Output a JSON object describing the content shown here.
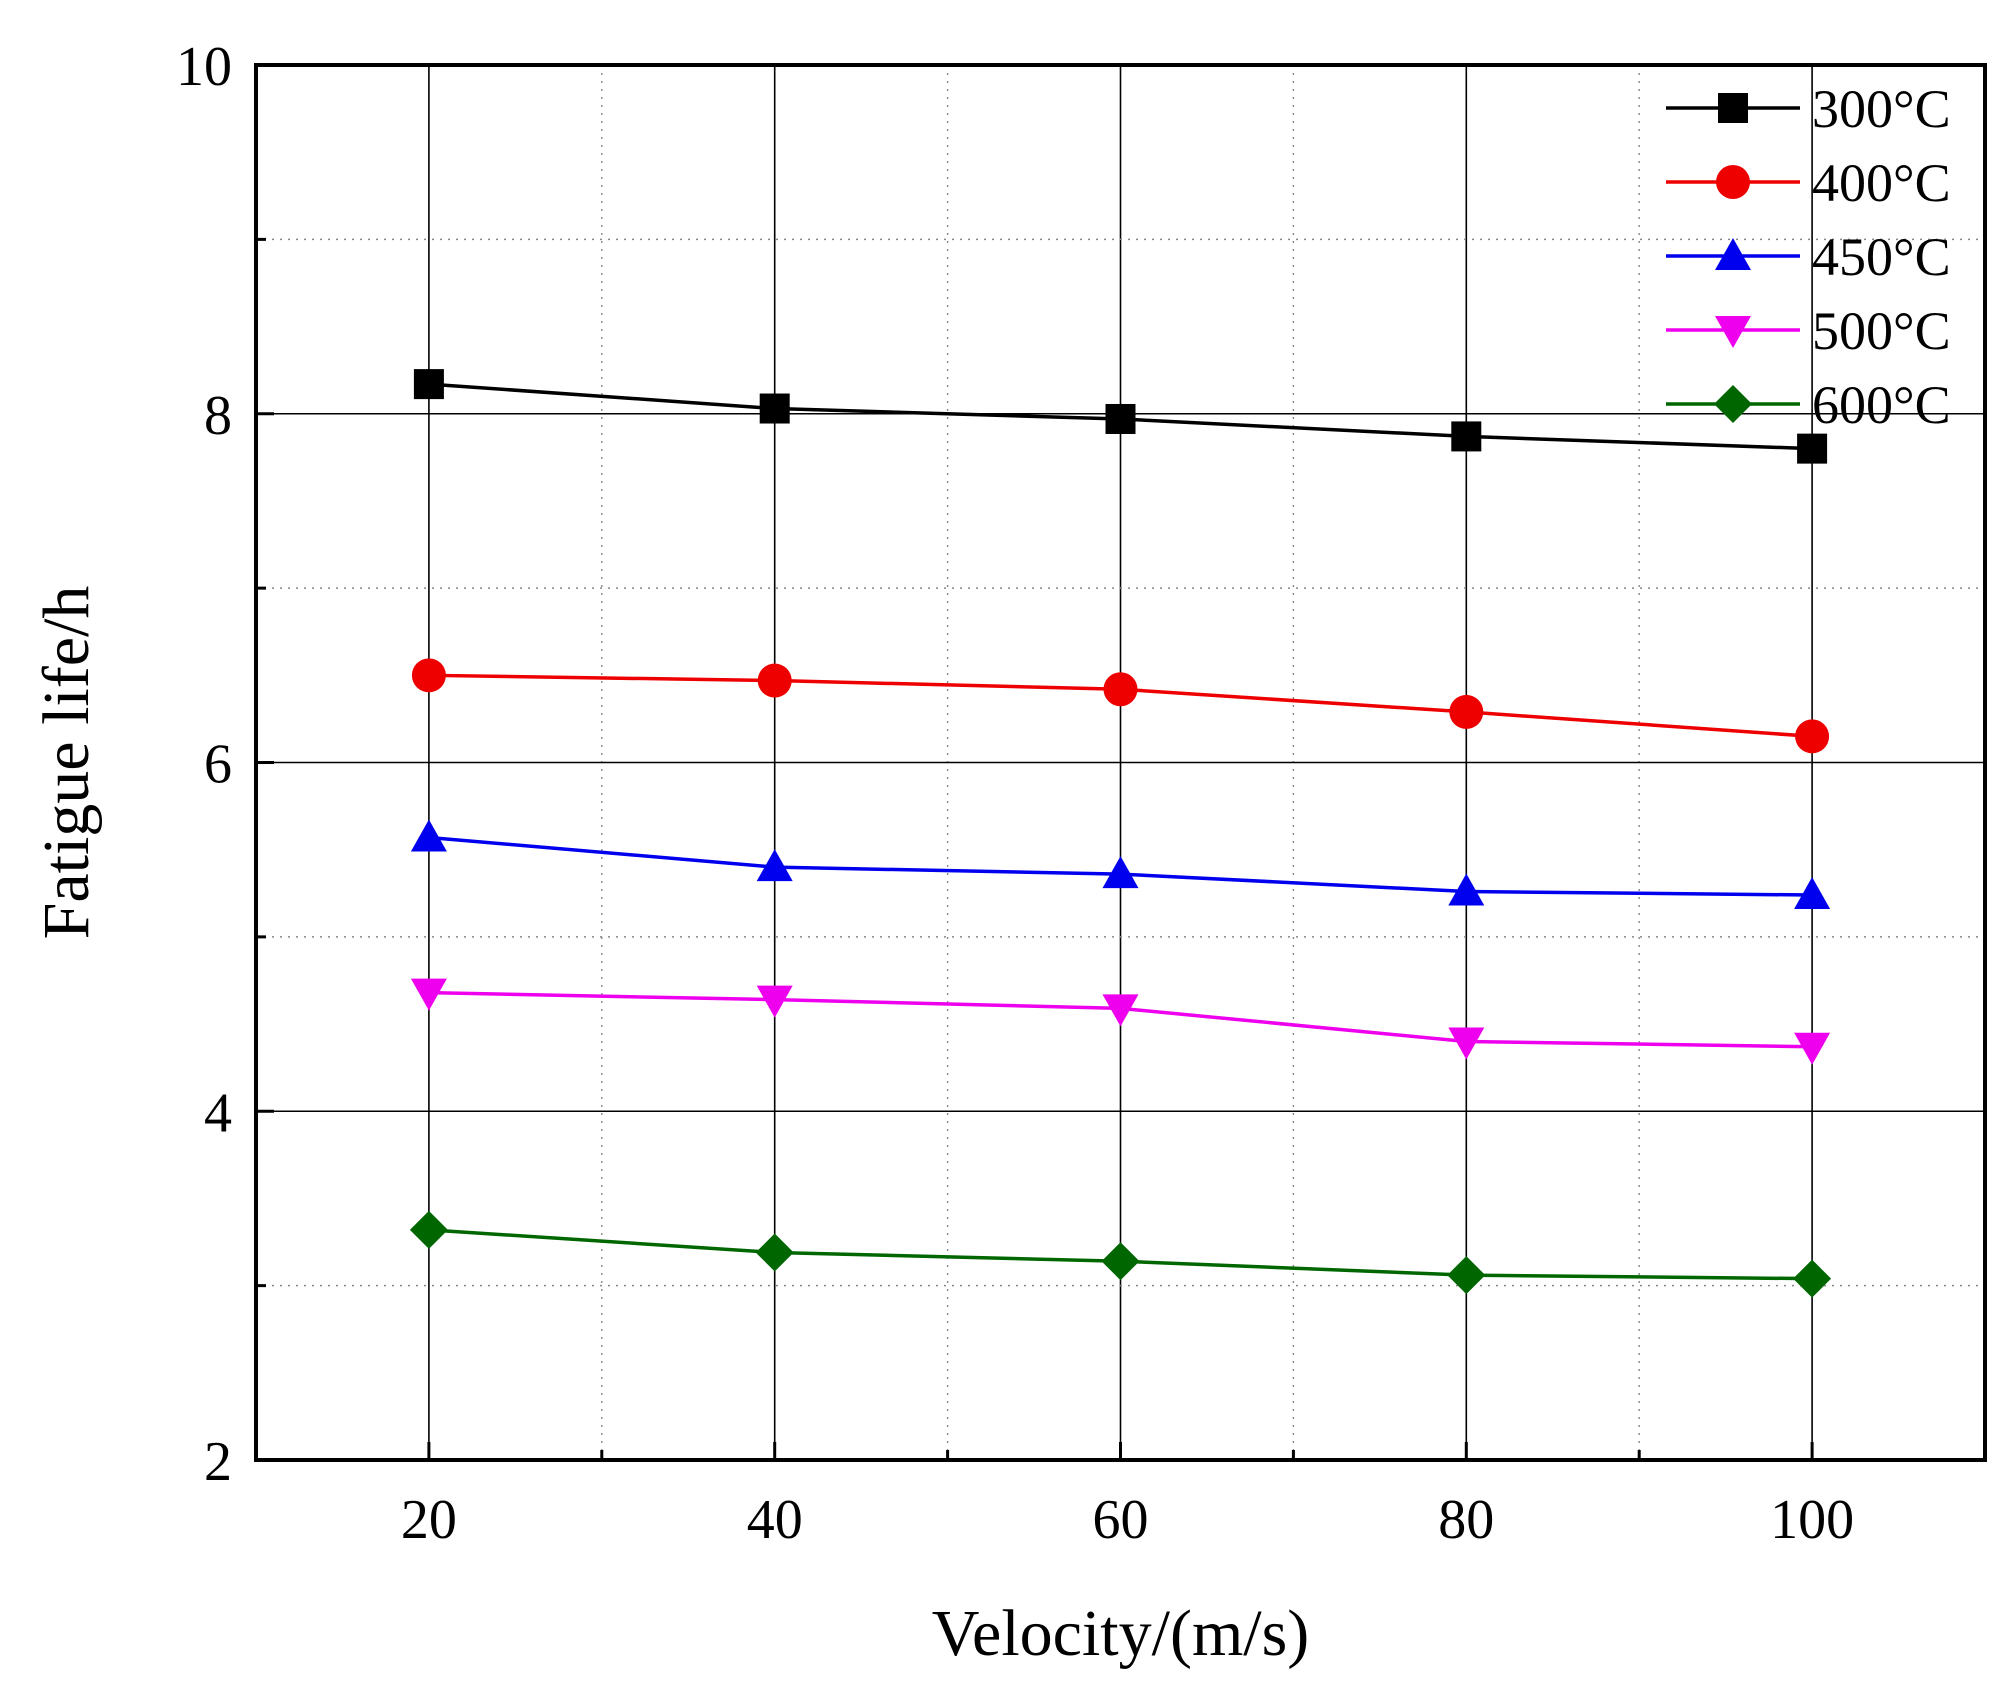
{
  "chart_data": {
    "type": "line",
    "title": "",
    "xlabel": "Velocity/(m/s)",
    "ylabel": "Fatigue life/h",
    "xlim": [
      10,
      110
    ],
    "ylim": [
      2,
      10
    ],
    "x": [
      20,
      40,
      60,
      80,
      100
    ],
    "x_ticks": [
      "20",
      "40",
      "60",
      "80",
      "100"
    ],
    "y_ticks": [
      "2",
      "4",
      "6",
      "8",
      "10"
    ],
    "grid": true,
    "legend_position": "top-right",
    "series": [
      {
        "name": "300°C",
        "color": "#000000",
        "marker": "square",
        "values": [
          8.17,
          8.03,
          7.97,
          7.87,
          7.8
        ]
      },
      {
        "name": "400°C",
        "color": "#ee0000",
        "marker": "circle",
        "values": [
          6.5,
          6.47,
          6.42,
          6.29,
          6.15
        ]
      },
      {
        "name": "450°C",
        "color": "#0000ee",
        "marker": "triangle-up",
        "values": [
          5.57,
          5.4,
          5.36,
          5.26,
          5.24
        ]
      },
      {
        "name": "500°C",
        "color": "#ee00ee",
        "marker": "triangle-down",
        "values": [
          4.68,
          4.64,
          4.59,
          4.4,
          4.37
        ]
      },
      {
        "name": "600°C",
        "color": "#006600",
        "marker": "diamond",
        "values": [
          3.32,
          3.19,
          3.14,
          3.06,
          3.04
        ]
      }
    ]
  }
}
